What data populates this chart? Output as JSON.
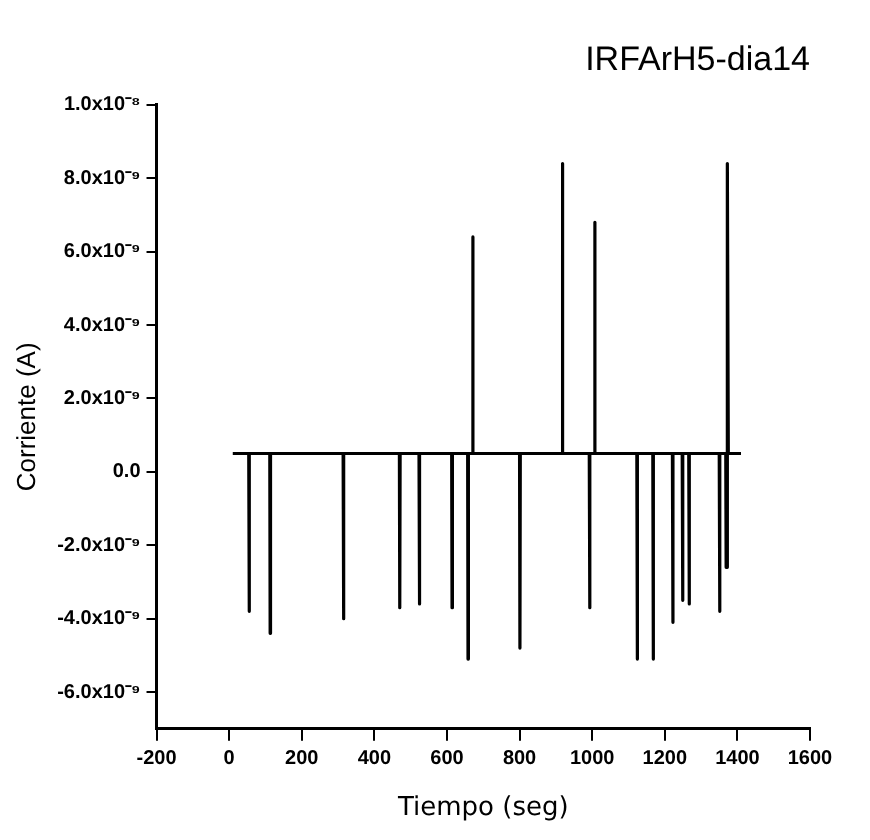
{
  "chart_data": {
    "type": "line",
    "title": "IRFArH5-dia14",
    "xlabel": "Tiempo (seg)",
    "ylabel": "Corriente (A)",
    "x": [
      10,
      54,
      55,
      56,
      112,
      113,
      114,
      314,
      315,
      316,
      469,
      470,
      471,
      523,
      524,
      525,
      613,
      614,
      615,
      657,
      658,
      659,
      670,
      671,
      672,
      800,
      801,
      802,
      917,
      918,
      919,
      992,
      993,
      994,
      1006,
      1007,
      1008,
      1123,
      1124,
      1125,
      1167,
      1168,
      1169,
      1221,
      1222,
      1223,
      1248,
      1249,
      1250,
      1266,
      1267,
      1268,
      1350,
      1351,
      1352,
      1368,
      1369,
      1370,
      1373,
      1374,
      1375,
      1410
    ],
    "series": [
      {
        "color": "#000000",
        "values": [
          5e-10,
          5e-10,
          -3.8e-09,
          5e-10,
          5e-10,
          -4.4e-09,
          5e-10,
          5e-10,
          -4e-09,
          5e-10,
          5e-10,
          -3.7e-09,
          5e-10,
          5e-10,
          -3.6e-09,
          5e-10,
          5e-10,
          -3.7e-09,
          5e-10,
          5e-10,
          -5.1e-09,
          5e-10,
          5e-10,
          6.4e-09,
          5e-10,
          5e-10,
          -4.8e-09,
          5e-10,
          5e-10,
          8.4e-09,
          5e-10,
          5e-10,
          -3.7e-09,
          5e-10,
          5e-10,
          6.8e-09,
          5e-10,
          5e-10,
          -5.1e-09,
          5e-10,
          5e-10,
          -5.1e-09,
          5e-10,
          5e-10,
          -4.1e-09,
          5e-10,
          5e-10,
          -3.5e-09,
          5e-10,
          5e-10,
          -3.6e-09,
          5e-10,
          5e-10,
          -3.8e-09,
          5e-10,
          5e-10,
          -2.6e-09,
          5e-10,
          5e-10,
          8.4e-09,
          5e-10,
          5e-10
        ]
      }
    ],
    "xlim": [
      -200,
      1600
    ],
    "xticks": [
      -200,
      0,
      200,
      400,
      600,
      800,
      1000,
      1200,
      1400,
      1600
    ],
    "ylim": [
      -7e-09,
      1e-08
    ],
    "yticks": [
      {
        "value": 1e-08,
        "label": "1.0x10⁻⁸"
      },
      {
        "value": 8e-09,
        "label": "8.0x10⁻⁹"
      },
      {
        "value": 6e-09,
        "label": "6.0x10⁻⁹"
      },
      {
        "value": 4e-09,
        "label": "4.0x10⁻⁹"
      },
      {
        "value": 2e-09,
        "label": "2.0x10⁻⁹"
      },
      {
        "value": 0,
        "label": "0.0"
      },
      {
        "value": -2e-09,
        "label": "-2.0x10⁻⁹"
      },
      {
        "value": -4e-09,
        "label": "-4.0x10⁻⁹"
      },
      {
        "value": -6e-09,
        "label": "-6.0x10⁻⁹"
      }
    ],
    "grid": false,
    "legend": false,
    "marker": "none",
    "line_style": "solid"
  }
}
